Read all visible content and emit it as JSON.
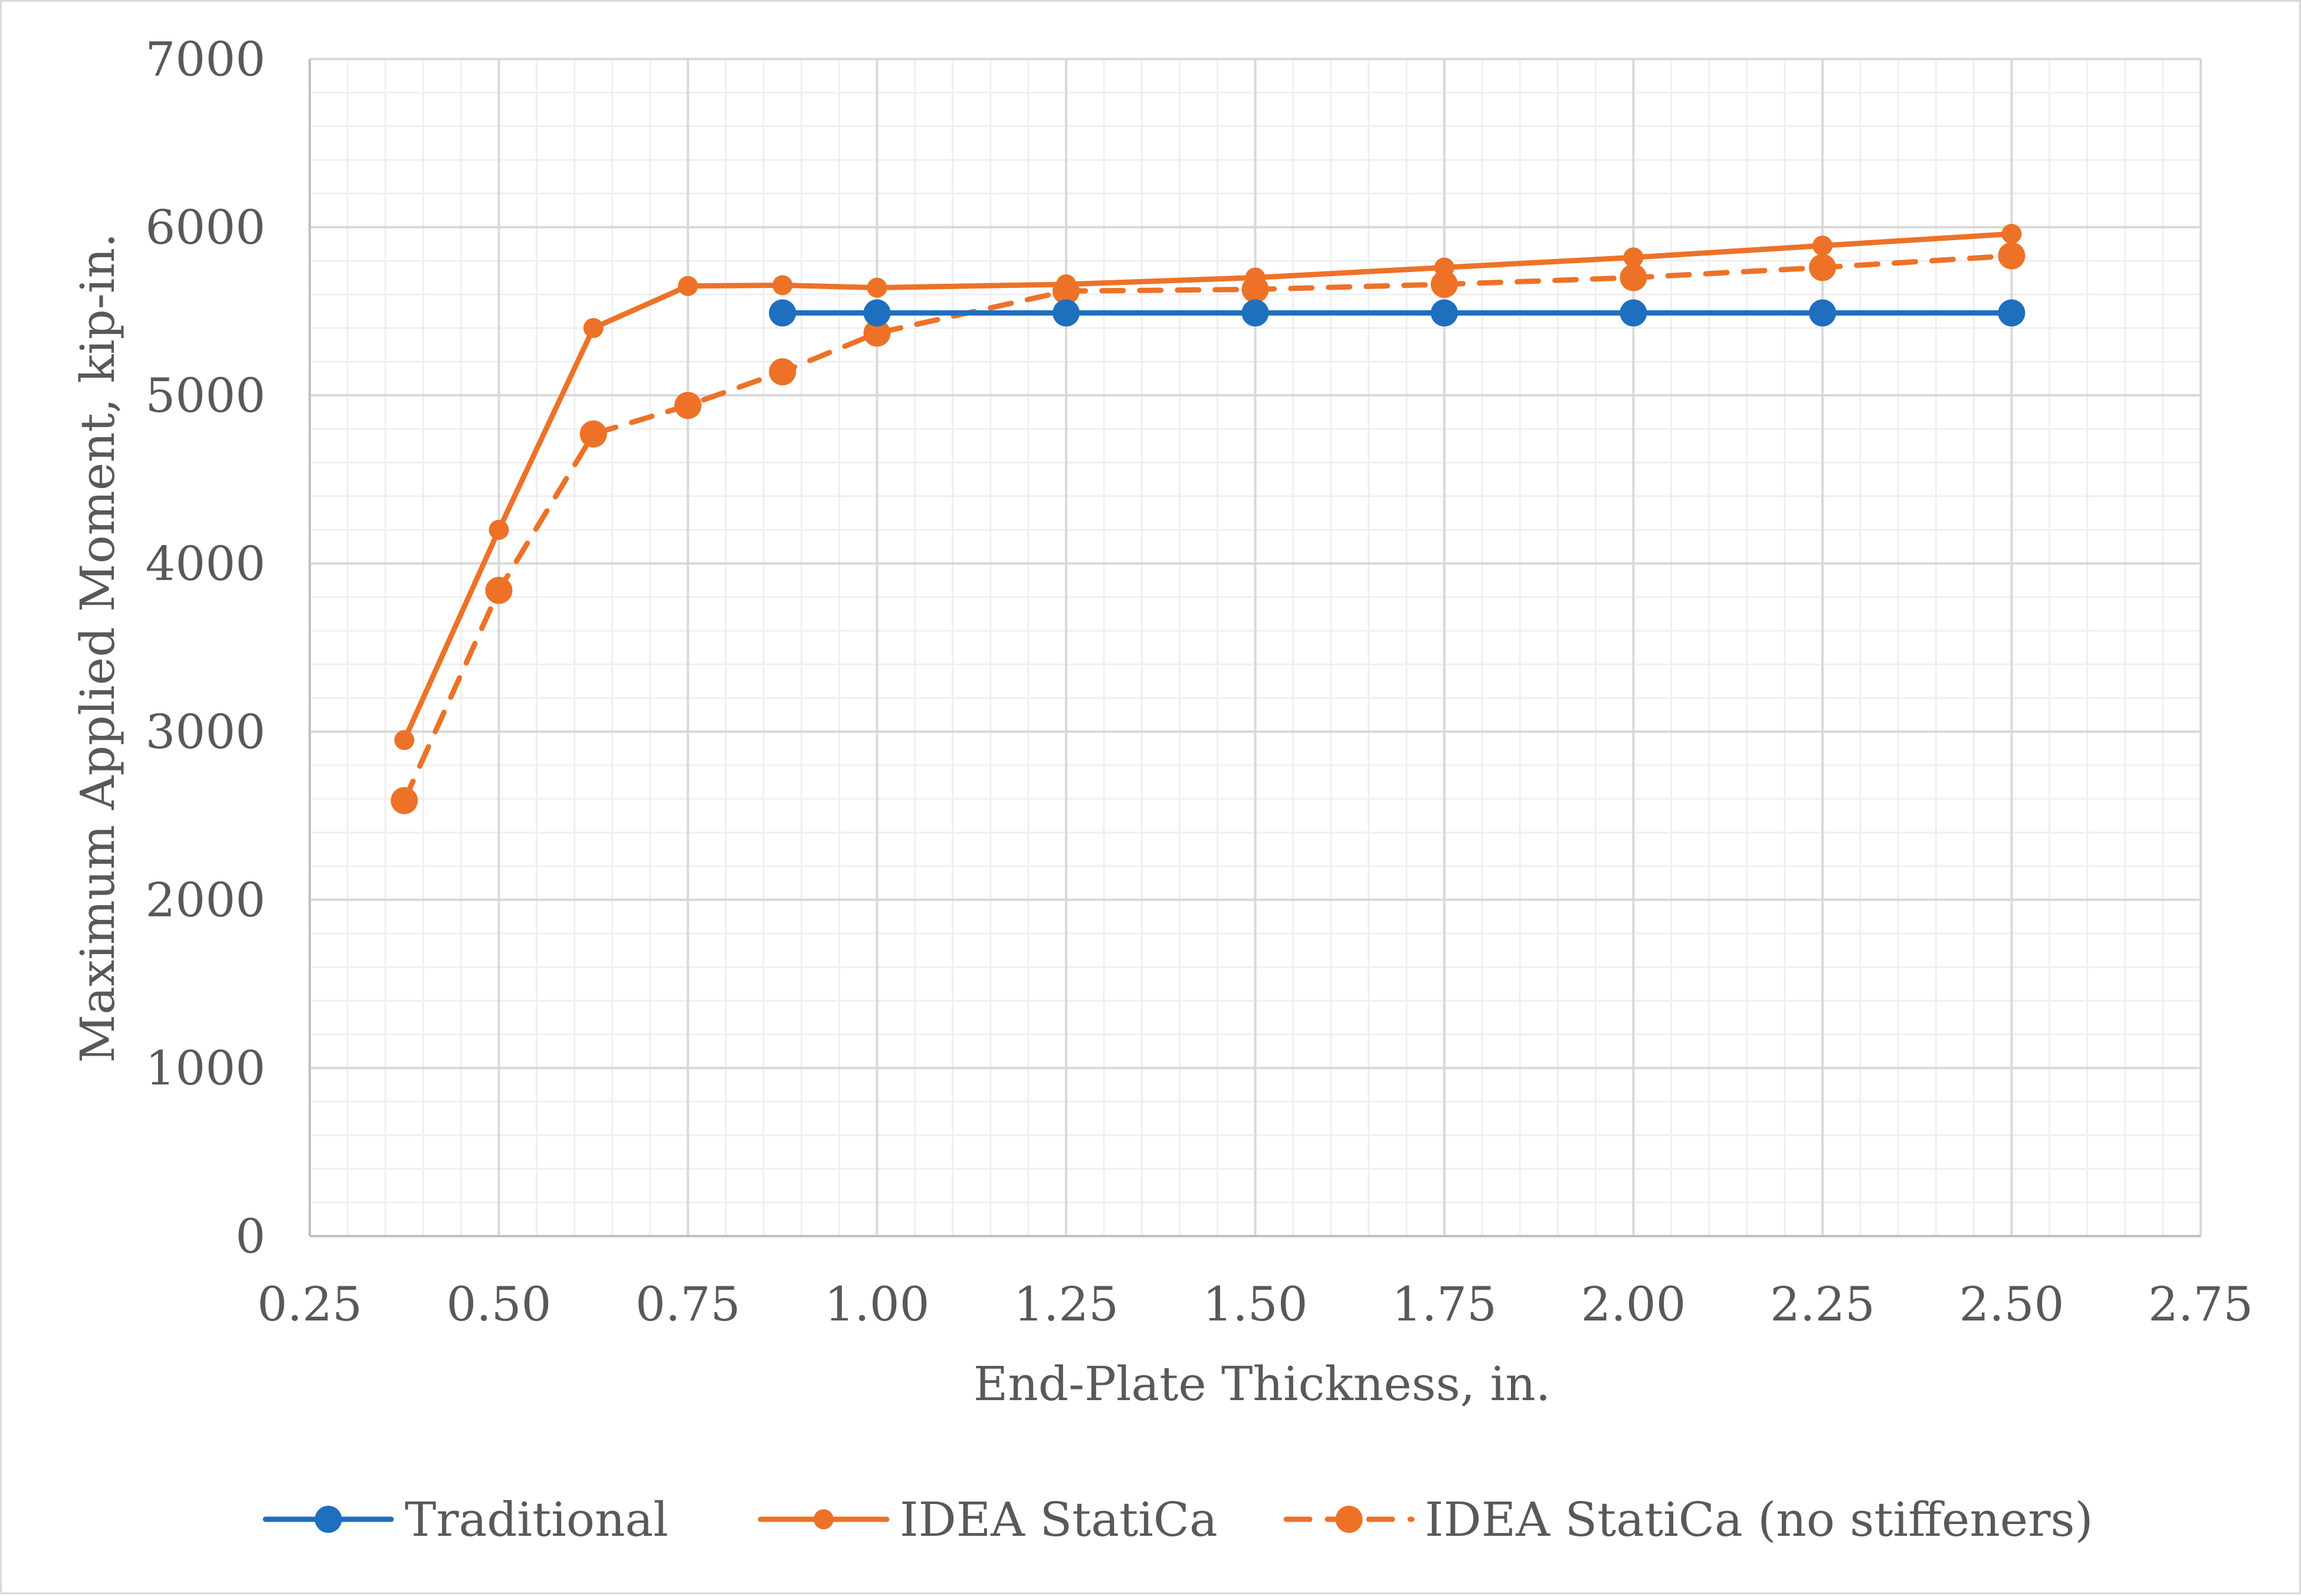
{
  "chart_data": {
    "type": "line",
    "title": "",
    "xlabel": "End-Plate Thickness, in.",
    "ylabel": "Maximum Applied Moment, kip-in.",
    "xlim": [
      0.25,
      2.75
    ],
    "ylim": [
      0,
      7000
    ],
    "x_major_ticks": [
      "0.25",
      "0.50",
      "0.75",
      "1.00",
      "1.25",
      "1.50",
      "1.75",
      "2.00",
      "2.25",
      "2.50",
      "2.75"
    ],
    "y_major_ticks": [
      "0",
      "1000",
      "2000",
      "3000",
      "4000",
      "5000",
      "6000",
      "7000"
    ],
    "grid": true,
    "legend_position": "bottom",
    "series": [
      {
        "name": "Traditional",
        "color": "#1f6fbf",
        "line_style": "solid",
        "marker": "large-circle",
        "x": [
          0.875,
          1.0,
          1.25,
          1.5,
          1.75,
          2.0,
          2.25,
          2.5
        ],
        "y": [
          5490,
          5490,
          5490,
          5490,
          5490,
          5490,
          5490,
          5490
        ]
      },
      {
        "name": "IDEA StatiCa",
        "color": "#ed7228",
        "line_style": "solid",
        "marker": "small-circle",
        "x": [
          0.375,
          0.5,
          0.625,
          0.75,
          0.875,
          1.0,
          1.25,
          1.5,
          1.75,
          2.0,
          2.25,
          2.5
        ],
        "y": [
          2950,
          4200,
          5400,
          5650,
          5655,
          5640,
          5660,
          5700,
          5760,
          5820,
          5890,
          5960
        ]
      },
      {
        "name": "IDEA StatiCa (no stiffeners)",
        "color": "#ed7228",
        "line_style": "dashed",
        "marker": "large-circle",
        "x": [
          0.375,
          0.5,
          0.625,
          0.75,
          0.875,
          1.0,
          1.25,
          1.5,
          1.75,
          2.0,
          2.25,
          2.5
        ],
        "y": [
          2590,
          3840,
          4770,
          4940,
          5140,
          5370,
          5620,
          5630,
          5660,
          5700,
          5760,
          5830
        ]
      }
    ]
  }
}
